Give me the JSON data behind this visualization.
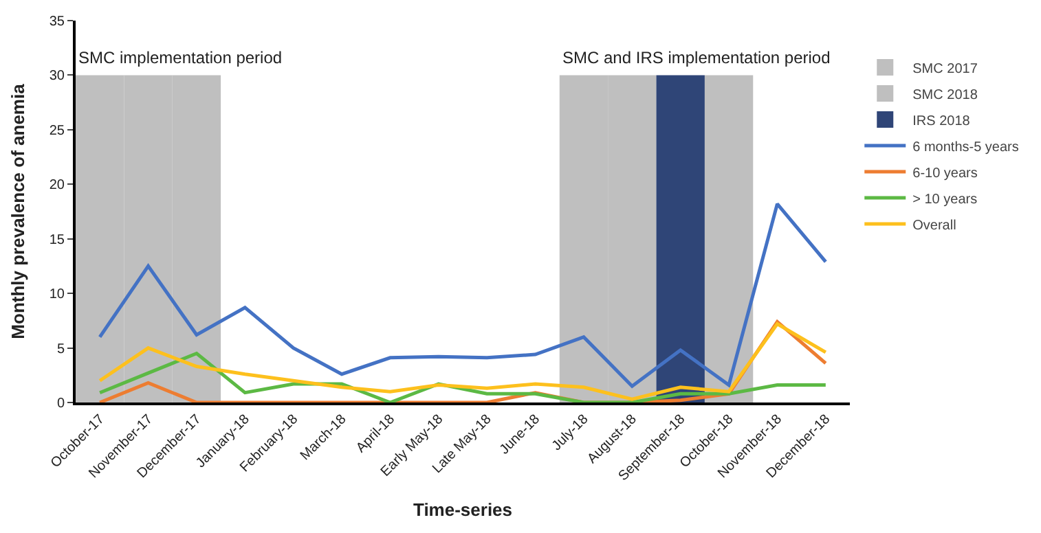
{
  "chart_data": {
    "type": "line",
    "xlabel": "Time-series",
    "ylabel": "Monthly prevalence of anemia",
    "categories": [
      "October-17",
      "November-17",
      "December-17",
      "January-18",
      "February-18",
      "March-18",
      "April-18",
      "Early May-18",
      "Late May-18",
      "June-18",
      "July-18",
      "August-18",
      "September-18",
      "October-18",
      "November-18",
      "December-18"
    ],
    "series": [
      {
        "name": "SMC 2017",
        "type": "bar",
        "color": "#bfbfbf",
        "values": [
          30,
          30,
          30,
          null,
          null,
          null,
          null,
          null,
          null,
          null,
          null,
          null,
          null,
          null,
          null,
          null
        ]
      },
      {
        "name": "SMC 2018",
        "type": "bar",
        "color": "#bfbfbf",
        "values": [
          null,
          null,
          null,
          null,
          null,
          null,
          null,
          null,
          null,
          null,
          30,
          30,
          null,
          30,
          null,
          null
        ]
      },
      {
        "name": "IRS 2018",
        "type": "bar",
        "color": "#2f4577",
        "values": [
          null,
          null,
          null,
          null,
          null,
          null,
          null,
          null,
          null,
          null,
          null,
          null,
          30,
          null,
          null,
          null
        ]
      },
      {
        "name": "6 months-5 years",
        "color": "#4472c4",
        "values": [
          6.0,
          12.5,
          6.2,
          8.7,
          5.0,
          2.6,
          4.1,
          4.2,
          4.1,
          4.4,
          6.0,
          1.5,
          4.8,
          1.6,
          18.2,
          12.9
        ]
      },
      {
        "name": "6-10 years",
        "color": "#ed7d31",
        "values": [
          0,
          1.8,
          0,
          0,
          0,
          0,
          0,
          0,
          0,
          0.9,
          0,
          0,
          0.2,
          0.8,
          7.4,
          3.6
        ]
      },
      {
        "name": "> 10 years",
        "color": "#5cb944",
        "values": [
          0.9,
          2.7,
          4.5,
          0.9,
          1.7,
          1.7,
          0,
          1.7,
          0.8,
          0.8,
          0,
          0,
          0.8,
          0.8,
          1.6,
          1.6
        ]
      },
      {
        "name": "Overall",
        "color": "#fdc01d",
        "values": [
          2.0,
          5.0,
          3.3,
          2.6,
          2.0,
          1.4,
          1.0,
          1.6,
          1.3,
          1.7,
          1.4,
          0.3,
          1.4,
          1.0,
          7.2,
          4.6
        ]
      }
    ],
    "annotations": [
      "SMC implementation period",
      "SMC and IRS implementation period"
    ],
    "ylim": [
      0,
      35
    ],
    "yticks": [
      0,
      5,
      10,
      15,
      20,
      25,
      30,
      35
    ],
    "legend": "right",
    "line_style": "solid",
    "marker": "none"
  }
}
